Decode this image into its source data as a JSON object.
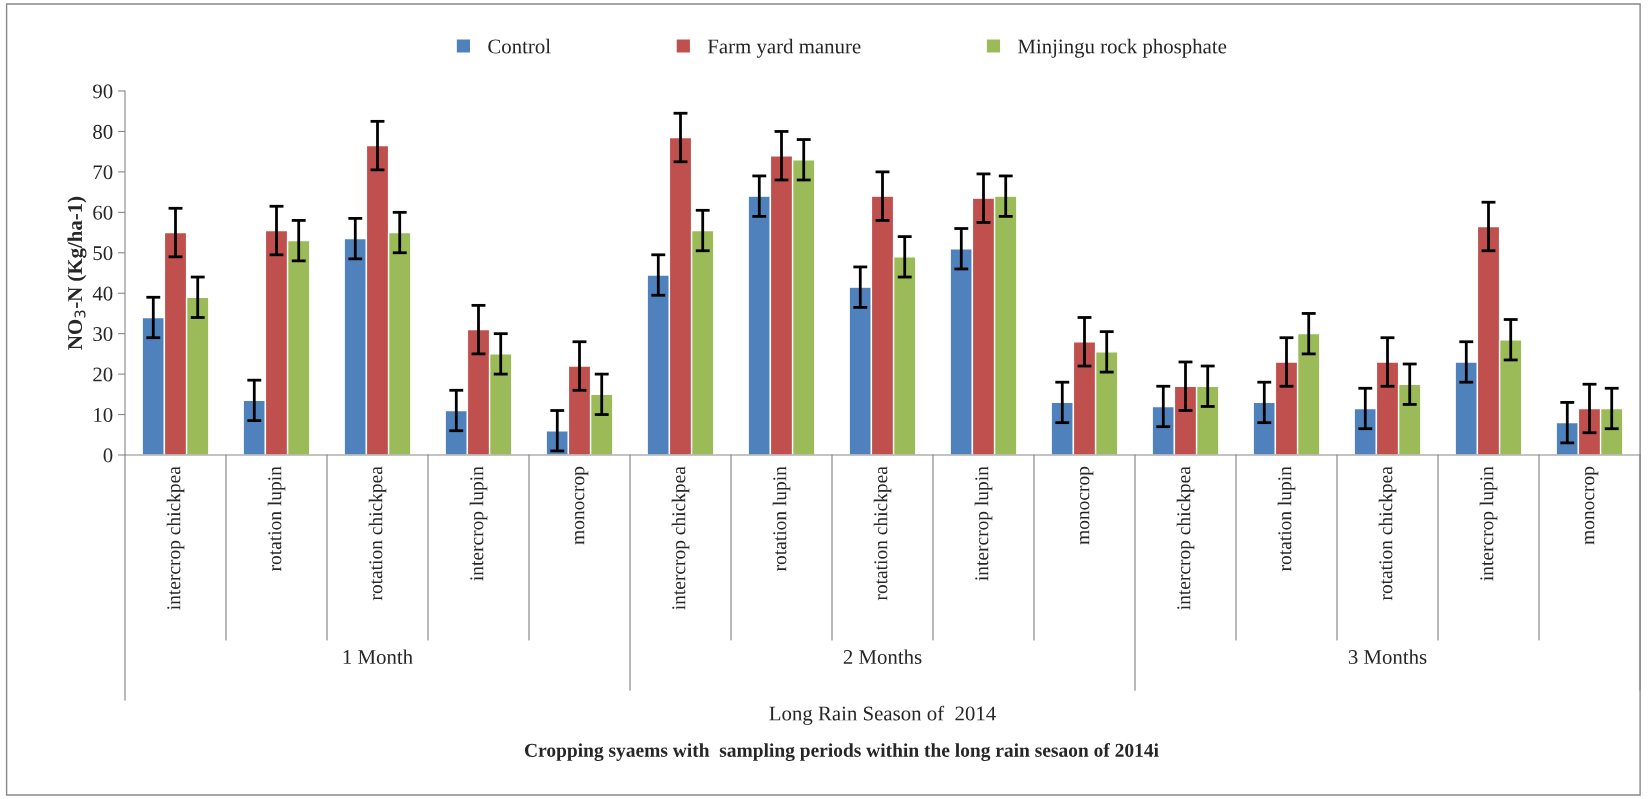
{
  "chart_data": {
    "type": "bar",
    "categories": [
      "intercrop chickpea",
      "rotation lupin",
      "rotation chickpea",
      "intercrop lupin",
      "monocrop",
      "intercrop chickpea",
      "rotation lupin",
      "rotation chickpea",
      "intercrop lupin",
      "monocrop",
      "intercrop chickpea",
      "rotation lupin",
      "rotation chickpea",
      "intercrop lupin",
      "monocrop"
    ],
    "series": [
      {
        "name": "Control",
        "color": "#4f81bd",
        "values": [
          34,
          13.5,
          53.5,
          11,
          6,
          44.5,
          64,
          41.5,
          51,
          13,
          12,
          13,
          11.5,
          23,
          8
        ],
        "errors": [
          5,
          5,
          5,
          5,
          5,
          5,
          5,
          5,
          5,
          5,
          5,
          5,
          5,
          5,
          5
        ]
      },
      {
        "name": "Farm yard manure",
        "color": "#c0504d",
        "values": [
          55,
          55.5,
          76.5,
          31,
          22,
          78.5,
          74,
          64,
          63.5,
          28,
          17,
          23,
          23,
          56.5,
          11.5
        ],
        "errors": [
          6,
          6,
          6,
          6,
          6,
          6,
          6,
          6,
          6,
          6,
          6,
          6,
          6,
          6,
          6
        ]
      },
      {
        "name": "Minjingu rock phosphate",
        "color": "#9bbb59",
        "values": [
          39,
          53,
          55,
          25,
          15,
          55.5,
          73,
          49,
          64,
          25.5,
          17,
          30,
          17.5,
          28.5,
          11.5
        ],
        "errors": [
          5,
          5,
          5,
          5,
          5,
          5,
          5,
          5,
          5,
          5,
          5,
          5,
          5,
          5,
          5
        ]
      }
    ],
    "ylabel": "NO$_{3}$-N (Kg/ha-1)",
    "xlabel": "Long Rain Season of  2014",
    "annotations": [
      "1 Month",
      "2 Months",
      "3 Months",
      "Cropping syaems with  sampling periods within the long rain sesaon of 2014i"
    ],
    "ylim": [
      0,
      90
    ],
    "yticks": [
      0,
      10,
      20,
      30,
      40,
      50,
      60,
      70,
      80,
      90
    ],
    "grid": false,
    "legend": "top"
  }
}
